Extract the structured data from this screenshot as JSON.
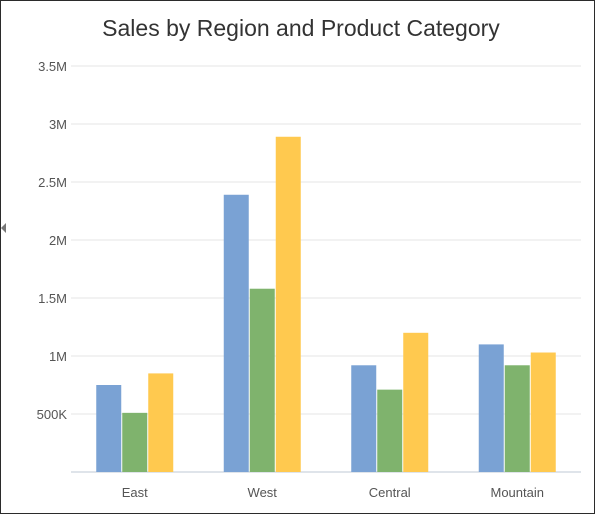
{
  "chart_data": {
    "type": "bar",
    "title": "Sales by Region and Product Category",
    "categories": [
      "East",
      "West",
      "Central",
      "Mountain"
    ],
    "series": [
      {
        "values": [
          750000,
          2390000,
          920000,
          1100000
        ],
        "color": "#7aa2d4"
      },
      {
        "values": [
          510000,
          1580000,
          710000,
          920000
        ],
        "color": "#7fb36d"
      },
      {
        "values": [
          850000,
          2890000,
          1200000,
          1030000
        ],
        "color": "#ffc94f"
      }
    ],
    "ylim": [
      0,
      3500000
    ],
    "y_ticks": [
      {
        "value": 500000,
        "label": "500K"
      },
      {
        "value": 1000000,
        "label": "1M"
      },
      {
        "value": 1500000,
        "label": "1.5M"
      },
      {
        "value": 2000000,
        "label": "2M"
      },
      {
        "value": 2500000,
        "label": "2.5M"
      },
      {
        "value": 3000000,
        "label": "3M"
      },
      {
        "value": 3500000,
        "label": "3.5M"
      }
    ],
    "grid": true,
    "legend": "none",
    "gridline_color": "#e6e6e6",
    "axis_color": "#bfc8d6"
  }
}
